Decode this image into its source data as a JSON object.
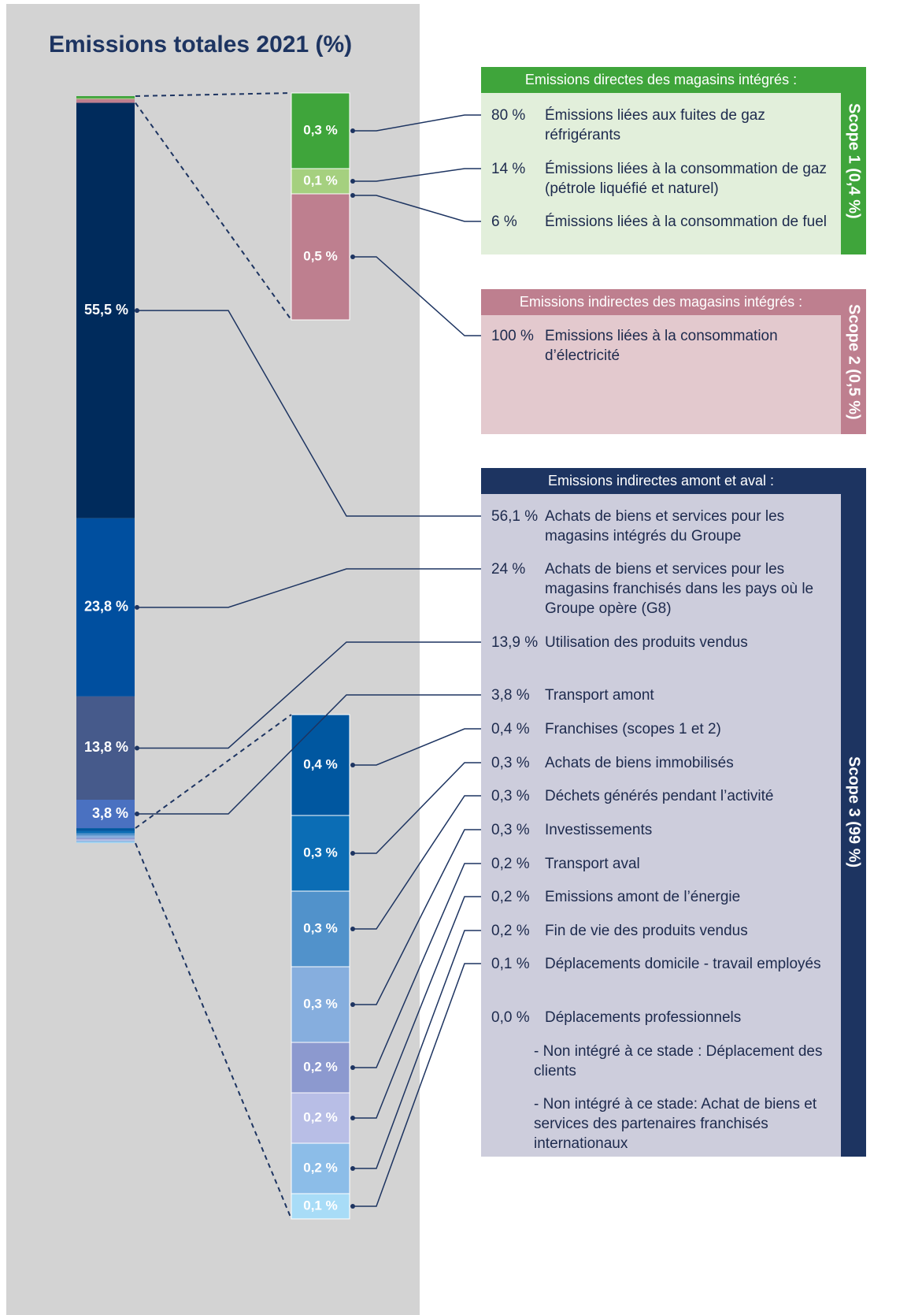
{
  "title": "Emissions totales 2021 (%)",
  "bar": {
    "scope12": {
      "values": [
        0.3,
        0.1,
        0.5
      ],
      "value_labels": [
        "0,3 %",
        "0,1 %",
        "0,5 %"
      ],
      "colors": [
        "#3fa53b",
        "#a5d07f",
        "#be7f8f"
      ]
    },
    "main": {
      "values": [
        55.5,
        23.8,
        13.8,
        3.8
      ],
      "value_labels": [
        "55,5 %",
        "23,8 %",
        "13,8 %",
        "3,8 %"
      ],
      "colors": [
        "#002b5c",
        "#004f9f",
        "#465a8b",
        "#4a71c1"
      ]
    },
    "detail": {
      "values": [
        0.4,
        0.3,
        0.3,
        0.3,
        0.2,
        0.2,
        0.2,
        0.1
      ],
      "value_labels": [
        "0,4 %",
        "0,3 %",
        "0,3 %",
        "0,3 %",
        "0,2 %",
        "0,2 %",
        "0,2 %",
        "0,1 %"
      ],
      "colors": [
        "#0057a0",
        "#0b6db5",
        "#5192cb",
        "#86aede",
        "#8c99cf",
        "#b8bee6",
        "#8cbde8",
        "#a8dcf7"
      ]
    }
  },
  "scopes": [
    {
      "header": "Emissions directes des magasins intégrés :",
      "side": "Scope 1 (0,4 %)",
      "color": "#3fa53b",
      "body_color": "#e2efdb",
      "items": [
        {
          "share": "80 %",
          "label": "Émissions liées aux fuites de gaz réfrigérants"
        },
        {
          "share": "14 %",
          "label": "Émissions liées à la consommation de gaz (pétrole liquéfié et naturel)"
        },
        {
          "share": "6 %",
          "label": "Émissions liées à la consommation de fuel"
        }
      ]
    },
    {
      "header": "Emissions indirectes des magasins intégrés :",
      "side": "Scope 2 (0,5 %)",
      "color": "#be7f8f",
      "body_color": "#e3c9ce",
      "items": [
        {
          "share": "100 %",
          "label": "Emissions liées à la consommation d’électricité"
        }
      ]
    },
    {
      "header": "Emissions indirectes amont et aval :",
      "side": "Scope 3 (99 %)",
      "color": "#1d3461",
      "body_color": "#cdcddc",
      "items": [
        {
          "share": "56,1 %",
          "label": "Achats de biens et services pour les magasins intégrés du Groupe"
        },
        {
          "share": "24 %",
          "label": "Achats de biens et services pour les magasins franchisés dans les pays où le Groupe opère (G8)"
        },
        {
          "share": "13,9 %",
          "label": "Utilisation des produits vendus"
        },
        {
          "share": "3,8 %",
          "label": "Transport amont"
        },
        {
          "share": "0,4 %",
          "label": "Franchises (scopes 1 et 2)"
        },
        {
          "share": "0,3 %",
          "label": "Achats de biens immobilisés"
        },
        {
          "share": "0,3 %",
          "label": "Déchets générés pendant l’activité"
        },
        {
          "share": "0,3 %",
          "label": "Investissements"
        },
        {
          "share": "0,2 %",
          "label": "Transport aval"
        },
        {
          "share": "0,2 %",
          "label": "Emissions amont de l’énergie"
        },
        {
          "share": "0,2 %",
          "label": "Fin de vie des produits vendus"
        },
        {
          "share": "0,1 %",
          "label": "Déplacements domicile - travail employés"
        },
        {
          "share": "0,0 %",
          "label": "Déplacements professionnels"
        }
      ],
      "notes": [
        "- Non intégré à ce stade : Déplacement des clients",
        "- Non intégré à ce stade: Achat de biens et services des partenaires franchisés internationaux"
      ]
    }
  ]
}
